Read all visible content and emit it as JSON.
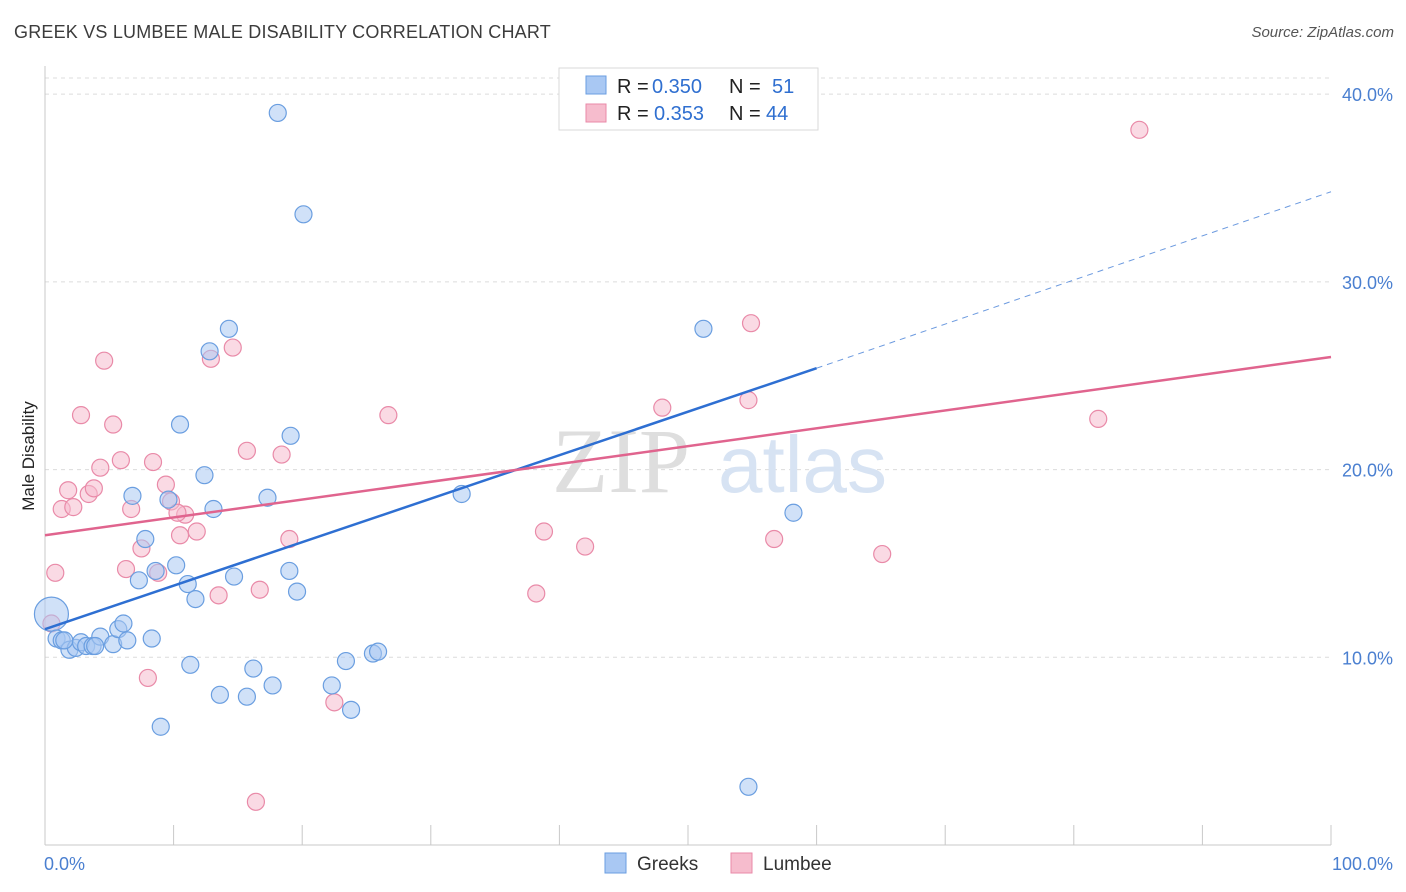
{
  "title": "GREEK VS LUMBEE MALE DISABILITY CORRELATION CHART",
  "source": "Source: ZipAtlas.com",
  "watermark": {
    "zip": "ZIP",
    "atlas": "atlas"
  },
  "colors": {
    "greeks_fill": "#a9c8f3",
    "greeks_stroke": "#6a9ee0",
    "greeks_line": "#2e6fd2",
    "lumbee_fill": "#f6bccd",
    "lumbee_stroke": "#e98aa8",
    "lumbee_line": "#e0648e",
    "tick_text": "#4a7fd0",
    "grid": "#dcdcdc"
  },
  "legend": {
    "rows": [
      {
        "r_label": "R =",
        "r_value": "0.350",
        "n_label": "N =",
        "n_value": "51"
      },
      {
        "r_label": "R =",
        "r_value": "0.353",
        "n_label": "N =",
        "n_value": "44"
      }
    ]
  },
  "bottom_legend": [
    "Greeks",
    "Lumbee"
  ],
  "chart_data": {
    "type": "scatter",
    "title": "GREEK VS LUMBEE MALE DISABILITY CORRELATION CHART",
    "xlabel": "",
    "ylabel": "Male Disability",
    "xlim": [
      0,
      100
    ],
    "ylim": [
      0,
      41.5
    ],
    "x_tick_labels": [
      "0.0%",
      "100.0%"
    ],
    "y_ticks": [
      10,
      20,
      30,
      40
    ],
    "y_tick_labels": [
      "10.0%",
      "20.0%",
      "30.0%",
      "40.0%"
    ],
    "grid": true,
    "legend_position": "top-center",
    "series": [
      {
        "name": "Greeks",
        "r": 0.35,
        "n": 51,
        "trend": {
          "x0": 0,
          "y0": 11.5,
          "x1": 60,
          "y1": 25.4,
          "dash_to_x": 100,
          "dash_to_y": 34.8
        },
        "points": [
          [
            0.5,
            12.3
          ],
          [
            0.9,
            11.0
          ],
          [
            1.3,
            10.9
          ],
          [
            1.9,
            10.4
          ],
          [
            2.4,
            10.5
          ],
          [
            2.8,
            10.8
          ],
          [
            3.2,
            10.6
          ],
          [
            3.7,
            10.6
          ],
          [
            4.3,
            11.1
          ],
          [
            5.3,
            10.7
          ],
          [
            5.7,
            11.5
          ],
          [
            6.1,
            11.8
          ],
          [
            6.4,
            10.9
          ],
          [
            6.8,
            18.6
          ],
          [
            7.3,
            14.1
          ],
          [
            7.8,
            16.3
          ],
          [
            8.3,
            11.0
          ],
          [
            8.6,
            14.6
          ],
          [
            9.0,
            6.3
          ],
          [
            9.6,
            18.4
          ],
          [
            10.2,
            14.9
          ],
          [
            10.5,
            22.4
          ],
          [
            11.1,
            13.9
          ],
          [
            11.3,
            9.6
          ],
          [
            11.7,
            13.1
          ],
          [
            12.4,
            19.7
          ],
          [
            12.8,
            26.3
          ],
          [
            13.1,
            17.9
          ],
          [
            13.6,
            8.0
          ],
          [
            14.3,
            27.5
          ],
          [
            14.7,
            14.3
          ],
          [
            15.7,
            7.9
          ],
          [
            16.2,
            9.4
          ],
          [
            17.3,
            18.5
          ],
          [
            17.7,
            8.5
          ],
          [
            18.1,
            39.0
          ],
          [
            19.1,
            21.8
          ],
          [
            19.0,
            14.6
          ],
          [
            19.6,
            13.5
          ],
          [
            22.3,
            8.5
          ],
          [
            23.4,
            9.8
          ],
          [
            23.8,
            7.2
          ],
          [
            25.5,
            10.2
          ],
          [
            25.9,
            10.3
          ],
          [
            32.4,
            18.7
          ],
          [
            51.2,
            27.5
          ],
          [
            54.7,
            3.1
          ],
          [
            58.2,
            17.7
          ],
          [
            20.1,
            33.6
          ],
          [
            1.5,
            10.9
          ],
          [
            3.9,
            10.6
          ]
        ]
      },
      {
        "name": "Lumbee",
        "r": 0.353,
        "n": 44,
        "trend": {
          "x0": 0,
          "y0": 16.5,
          "x1": 100,
          "y1": 26.0
        },
        "points": [
          [
            0.5,
            11.8
          ],
          [
            0.8,
            14.5
          ],
          [
            1.3,
            17.9
          ],
          [
            1.8,
            18.9
          ],
          [
            2.2,
            18.0
          ],
          [
            2.8,
            22.9
          ],
          [
            3.4,
            18.7
          ],
          [
            3.8,
            19.0
          ],
          [
            4.3,
            20.1
          ],
          [
            4.6,
            25.8
          ],
          [
            5.3,
            22.4
          ],
          [
            5.9,
            20.5
          ],
          [
            6.3,
            14.7
          ],
          [
            6.7,
            17.9
          ],
          [
            7.5,
            15.8
          ],
          [
            8.0,
            8.9
          ],
          [
            8.4,
            20.4
          ],
          [
            8.8,
            14.5
          ],
          [
            9.4,
            19.2
          ],
          [
            9.8,
            18.3
          ],
          [
            10.5,
            16.5
          ],
          [
            10.9,
            17.6
          ],
          [
            11.8,
            16.7
          ],
          [
            12.9,
            25.9
          ],
          [
            13.5,
            13.3
          ],
          [
            14.6,
            26.5
          ],
          [
            15.7,
            21.0
          ],
          [
            16.4,
            2.3
          ],
          [
            16.7,
            13.6
          ],
          [
            18.4,
            20.8
          ],
          [
            19.0,
            16.3
          ],
          [
            22.5,
            7.6
          ],
          [
            26.7,
            22.9
          ],
          [
            38.2,
            13.4
          ],
          [
            38.8,
            16.7
          ],
          [
            42.0,
            15.9
          ],
          [
            48.0,
            23.3
          ],
          [
            54.7,
            23.7
          ],
          [
            54.9,
            27.8
          ],
          [
            56.7,
            16.3
          ],
          [
            65.1,
            15.5
          ],
          [
            81.9,
            22.7
          ],
          [
            85.1,
            38.1
          ],
          [
            10.3,
            17.7
          ]
        ]
      }
    ]
  }
}
